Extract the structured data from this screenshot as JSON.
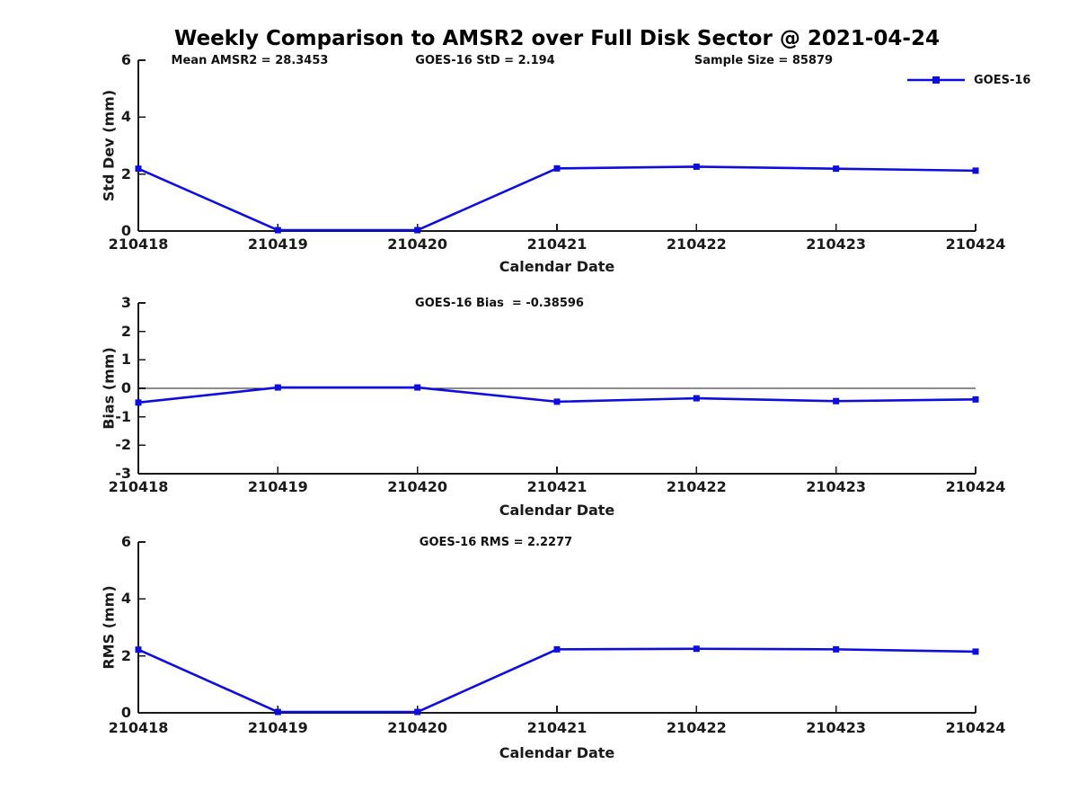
{
  "title": "Weekly Comparison to AMSR2 over Full Disk Sector @ 2021-04-24",
  "legend": {
    "label": "GOES-16",
    "position": "top-right"
  },
  "colors": {
    "line": "#0d0de0",
    "axis": "#1a1a1a"
  },
  "chart_data": [
    {
      "type": "line",
      "panel": "std-dev",
      "ylabel": "Std Dev (mm)",
      "xlabel": "Calendar Date",
      "ylim": [
        0,
        6
      ],
      "yticks": [
        0,
        2,
        4,
        6
      ],
      "grid": false,
      "categories": [
        "210418",
        "210419",
        "210420",
        "210421",
        "210422",
        "210423",
        "210424"
      ],
      "series": [
        {
          "name": "GOES-16",
          "values": [
            2.19,
            0.03,
            0.03,
            2.2,
            2.26,
            2.19,
            2.12
          ]
        }
      ],
      "annotations": [
        "Mean AMSR2 = 28.3453",
        "GOES-16 StD = 2.194",
        "Sample Size = 85879"
      ]
    },
    {
      "type": "line",
      "panel": "bias",
      "ylabel": "Bias (mm)",
      "xlabel": "Calendar Date",
      "ylim": [
        -3,
        3
      ],
      "yticks": [
        3,
        2,
        1,
        0,
        -1,
        -2,
        -3
      ],
      "zero_line": true,
      "grid": false,
      "categories": [
        "210418",
        "210419",
        "210420",
        "210421",
        "210422",
        "210423",
        "210424"
      ],
      "series": [
        {
          "name": "GOES-16",
          "values": [
            -0.5,
            0.03,
            0.03,
            -0.47,
            -0.35,
            -0.45,
            -0.39
          ]
        }
      ],
      "annotations": [
        "GOES-16 Bias  = -0.38596"
      ]
    },
    {
      "type": "line",
      "panel": "rms",
      "ylabel": "RMS (mm)",
      "xlabel": "Calendar Date",
      "ylim": [
        0,
        6
      ],
      "yticks": [
        0,
        2,
        4,
        6
      ],
      "grid": false,
      "categories": [
        "210418",
        "210419",
        "210420",
        "210421",
        "210422",
        "210423",
        "210424"
      ],
      "series": [
        {
          "name": "GOES-16",
          "values": [
            2.22,
            0.03,
            0.03,
            2.23,
            2.25,
            2.23,
            2.15
          ]
        }
      ],
      "annotations": [
        "GOES-16 RMS = 2.2277"
      ]
    }
  ]
}
